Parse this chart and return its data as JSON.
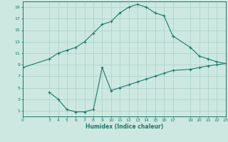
{
  "xlabel": "Humidex (Indice chaleur)",
  "bg_color": "#cce8e0",
  "grid_color": "#b0d4cc",
  "line_color": "#1a7a6a",
  "line1_x": [
    0,
    3,
    4,
    5,
    6,
    7,
    8,
    9,
    10,
    11,
    12,
    13,
    14,
    15,
    16,
    17,
    19,
    20,
    21,
    22,
    23
  ],
  "line1_y": [
    8.5,
    10.0,
    11.0,
    11.5,
    12.0,
    13.0,
    14.5,
    16.0,
    16.5,
    18.0,
    19.0,
    19.5,
    19.0,
    18.0,
    17.5,
    14.0,
    12.0,
    10.5,
    10.0,
    9.5,
    9.2
  ],
  "line2_x": [
    3,
    4,
    5,
    6,
    7,
    8,
    9,
    10,
    11,
    12,
    13,
    14,
    15,
    16,
    17,
    19,
    20,
    21,
    22,
    23
  ],
  "line2_y": [
    4.2,
    3.0,
    1.2,
    0.8,
    0.8,
    1.2,
    8.5,
    4.5,
    5.0,
    5.5,
    6.0,
    6.5,
    7.0,
    7.5,
    8.0,
    8.2,
    8.5,
    8.8,
    9.0,
    9.2
  ],
  "xlim": [
    0,
    23
  ],
  "ylim": [
    0,
    20
  ],
  "xticks": [
    0,
    3,
    4,
    5,
    6,
    7,
    8,
    9,
    10,
    11,
    12,
    13,
    14,
    15,
    16,
    17,
    19,
    20,
    21,
    22,
    23
  ],
  "yticks": [
    1,
    3,
    5,
    7,
    9,
    11,
    13,
    15,
    17,
    19
  ],
  "figsize": [
    3.2,
    2.0
  ],
  "dpi": 100
}
